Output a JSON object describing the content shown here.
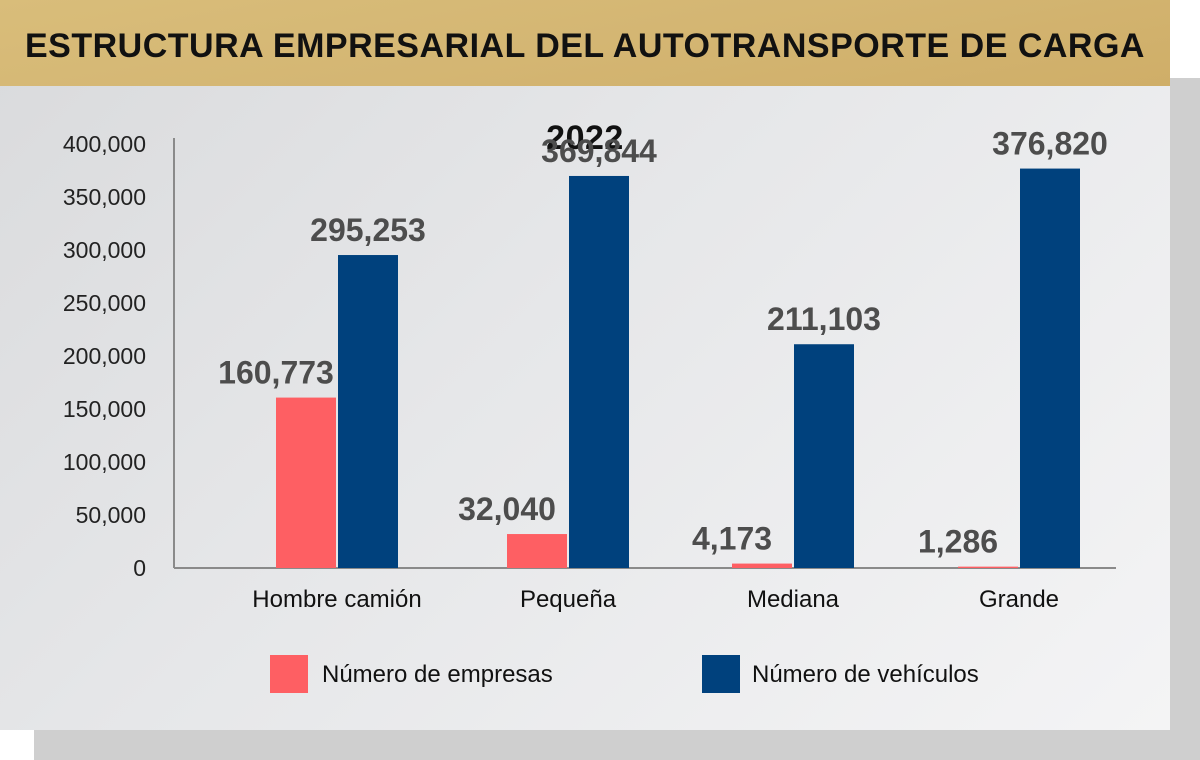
{
  "title": "ESTRUCTURA EMPRESARIAL DEL AUTOTRANSPORTE DE CARGA 2022",
  "colors": {
    "empresas": "#fe5f63",
    "vehiculos": "#00417d",
    "banner": "#d4b673"
  },
  "chart_data": {
    "type": "bar",
    "title": "ESTRUCTURA EMPRESARIAL DEL AUTOTRANSPORTE DE CARGA 2022",
    "categories": [
      "Hombre camión",
      "Pequeña",
      "Mediana",
      "Grande"
    ],
    "series": [
      {
        "name": "Número de empresas",
        "values": [
          160773,
          32040,
          4173,
          1286
        ],
        "labels": [
          "160,773",
          "32,040",
          "4,173",
          "1,286"
        ],
        "color": "#fe5f63"
      },
      {
        "name": "Número de vehículos",
        "values": [
          295253,
          369844,
          211103,
          376820
        ],
        "labels": [
          "295,253",
          "369,844",
          "211,103",
          "376,820"
        ],
        "color": "#00417d"
      }
    ],
    "y_ticks": [
      0,
      50000,
      100000,
      150000,
      200000,
      250000,
      300000,
      350000,
      400000
    ],
    "y_tick_labels": [
      "0",
      "50,000",
      "100,000",
      "150,000",
      "200,000",
      "250,000",
      "300,000",
      "350,000",
      "400,000"
    ],
    "ylim": [
      0,
      400000
    ],
    "xlabel": "",
    "ylabel": "",
    "grid": false,
    "legend_position": "bottom"
  }
}
